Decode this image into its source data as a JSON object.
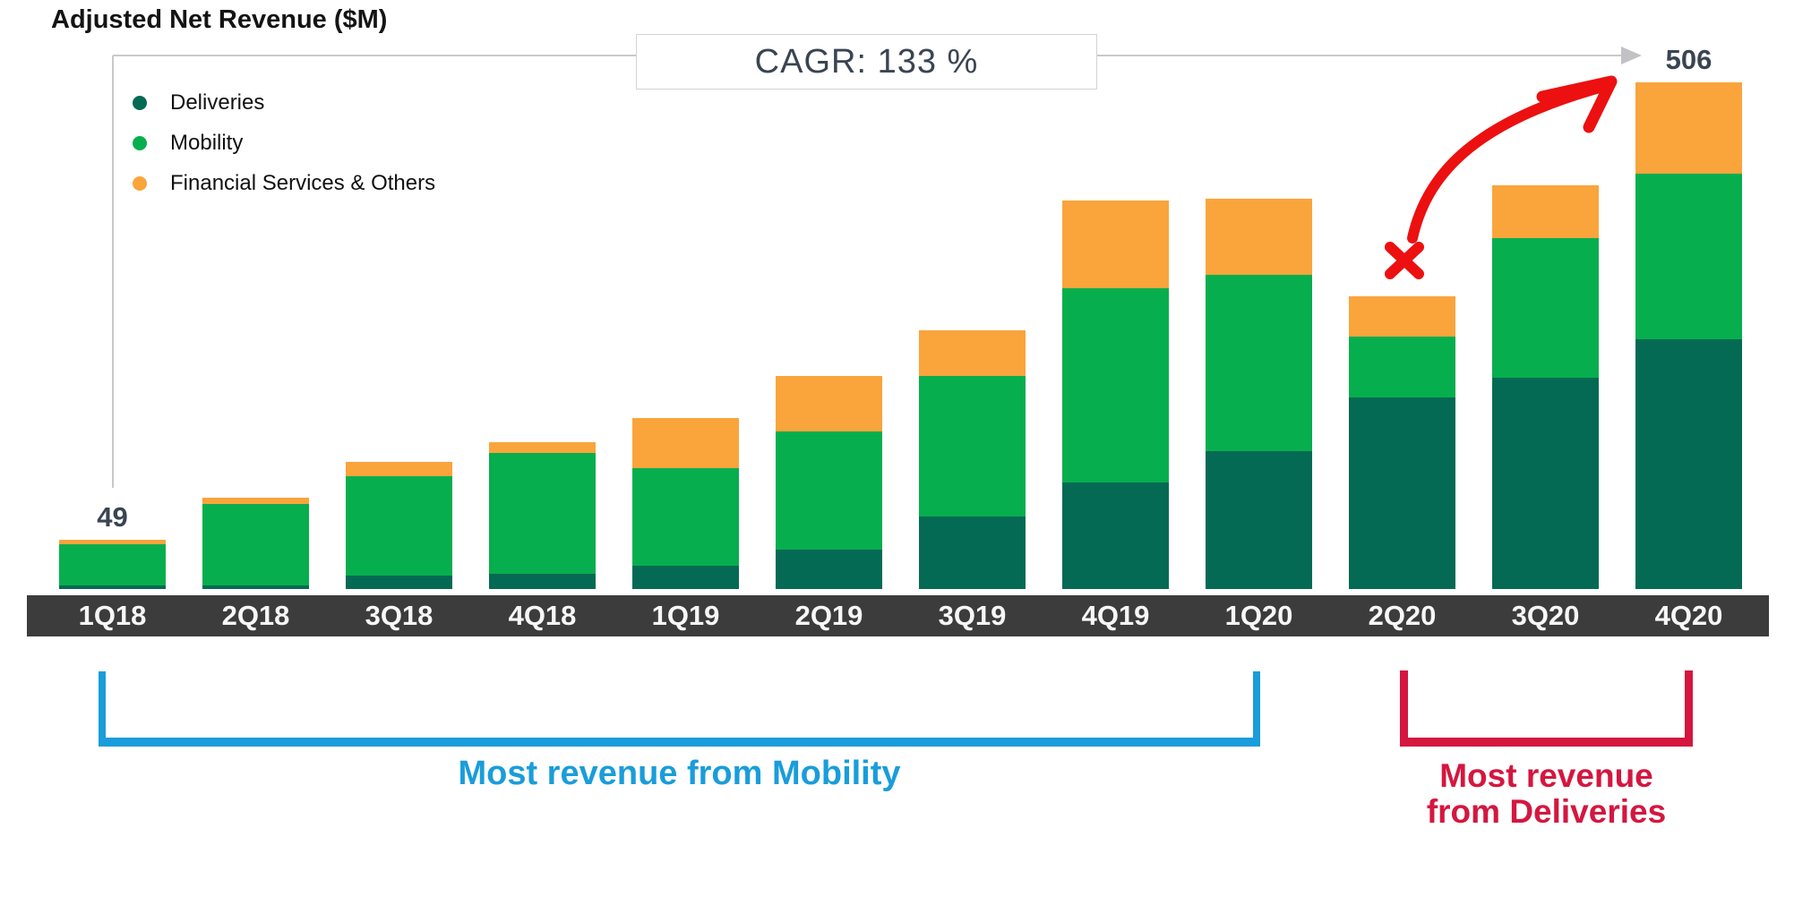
{
  "title": "Adjusted Net Revenue ($M)",
  "cagr_label": "CAGR: 133 %",
  "legend": [
    {
      "label": "Deliveries",
      "color": "#046a53"
    },
    {
      "label": "Mobility",
      "color": "#07ae4e"
    },
    {
      "label": "Financial Services & Others",
      "color": "#faa43c"
    }
  ],
  "annotations": {
    "mobility_note": "Most revenue from Mobility",
    "deliveries_note_line1": "Most revenue",
    "deliveries_note_line2": "from Deliveries",
    "red_x_icon": "hand-drawn cross over 2Q20",
    "red_curved_arrow": "hand-drawn arrow toward 4Q20 peak"
  },
  "colors": {
    "deliveries": "#046a53",
    "mobility": "#07ae4e",
    "financial_services": "#faa43c",
    "axis_gray": "#c9c9cc",
    "band_gray": "#3c3c3c",
    "label_slate": "#3a4452",
    "annotation_blue": "#1a9dda",
    "annotation_crimson": "#d4173f",
    "hand_drawn_red": "#ec1010"
  },
  "chart_data": {
    "type": "bar",
    "stacked": true,
    "title": "Adjusted Net Revenue ($M)",
    "xlabel": "",
    "ylabel": "Adjusted Net Revenue ($M)",
    "ylim": [
      0,
      530
    ],
    "grid": false,
    "legend_position": "top-left",
    "cagr": "133 %",
    "categories": [
      "1Q18",
      "2Q18",
      "3Q18",
      "4Q18",
      "1Q19",
      "2Q19",
      "3Q19",
      "4Q19",
      "1Q20",
      "2Q20",
      "3Q20",
      "4Q20"
    ],
    "series": [
      {
        "name": "Deliveries",
        "color": "#046a53",
        "values": [
          4,
          4,
          13,
          15,
          23,
          39,
          72,
          106,
          138,
          191,
          211,
          249
        ]
      },
      {
        "name": "Mobility",
        "color": "#07ae4e",
        "values": [
          41,
          81,
          100,
          121,
          98,
          118,
          141,
          194,
          176,
          61,
          139,
          166
        ]
      },
      {
        "name": "Financial Services & Others",
        "color": "#faa43c",
        "values": [
          4,
          6,
          14,
          11,
          50,
          56,
          45,
          88,
          76,
          40,
          53,
          91
        ]
      }
    ],
    "totals": [
      49,
      91,
      127,
      147,
      171,
      213,
      258,
      388,
      390,
      292,
      403,
      506
    ],
    "value_labels": {
      "1Q18": "49",
      "4Q20": "506"
    }
  }
}
